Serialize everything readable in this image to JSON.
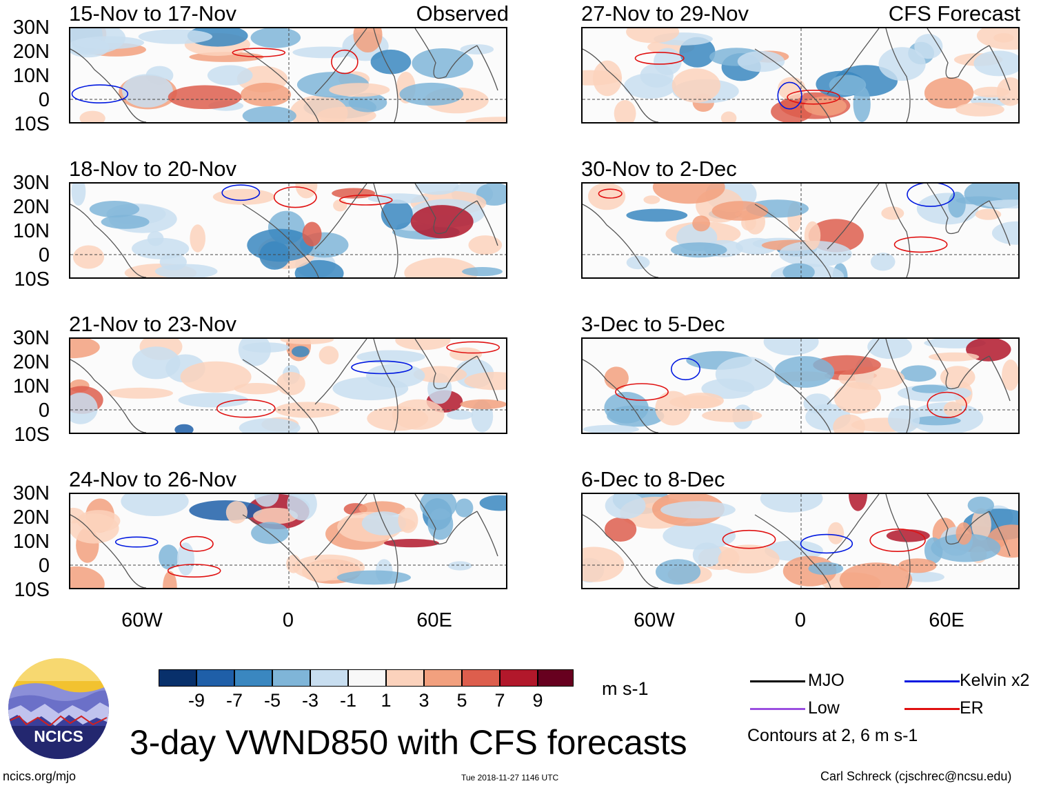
{
  "panels_left": [
    {
      "title": "15-Nov to 17-Nov",
      "tag": "Observed"
    },
    {
      "title": "18-Nov to 20-Nov",
      "tag": ""
    },
    {
      "title": "21-Nov to 23-Nov",
      "tag": ""
    },
    {
      "title": "24-Nov to 26-Nov",
      "tag": ""
    }
  ],
  "panels_right": [
    {
      "title": "27-Nov to 29-Nov",
      "tag": "CFS Forecast"
    },
    {
      "title": "30-Nov to 2-Dec",
      "tag": ""
    },
    {
      "title": "3-Dec to 5-Dec",
      "tag": ""
    },
    {
      "title": "6-Dec to 8-Dec",
      "tag": ""
    }
  ],
  "lat_labels": [
    "30N",
    "20N",
    "10N",
    "0",
    "10S"
  ],
  "lon_labels": [
    "60W",
    "0",
    "60E"
  ],
  "colorbar": {
    "labels": [
      "-9",
      "-7",
      "-5",
      "-3",
      "-1",
      "1",
      "3",
      "5",
      "7",
      "9"
    ],
    "colors": [
      "#08306b",
      "#1f5fa8",
      "#3a87c0",
      "#7fb5d8",
      "#c8def0",
      "#f8f8f8",
      "#fbd2bc",
      "#f2a07e",
      "#dd5e4d",
      "#b2182b",
      "#67001f"
    ],
    "units": "m s-1"
  },
  "legend": {
    "mjo": "MJO",
    "kelvin": "Kelvin x2",
    "low": "Low",
    "er": "ER",
    "note": "Contours at 2, 6 m s-1",
    "colors": {
      "mjo": "#000000",
      "kelvin": "#0018e0",
      "low": "#9b4ee0",
      "er": "#e01010"
    }
  },
  "title": "3-day VWND850 with CFS forecasts",
  "logo_text": "NCICS",
  "footer": {
    "left": "ncics.org/mjo",
    "center": "Tue 2018-11-27 1146 UTC",
    "right": "Carl Schreck (cjschrec@ncsu.edu)"
  }
}
